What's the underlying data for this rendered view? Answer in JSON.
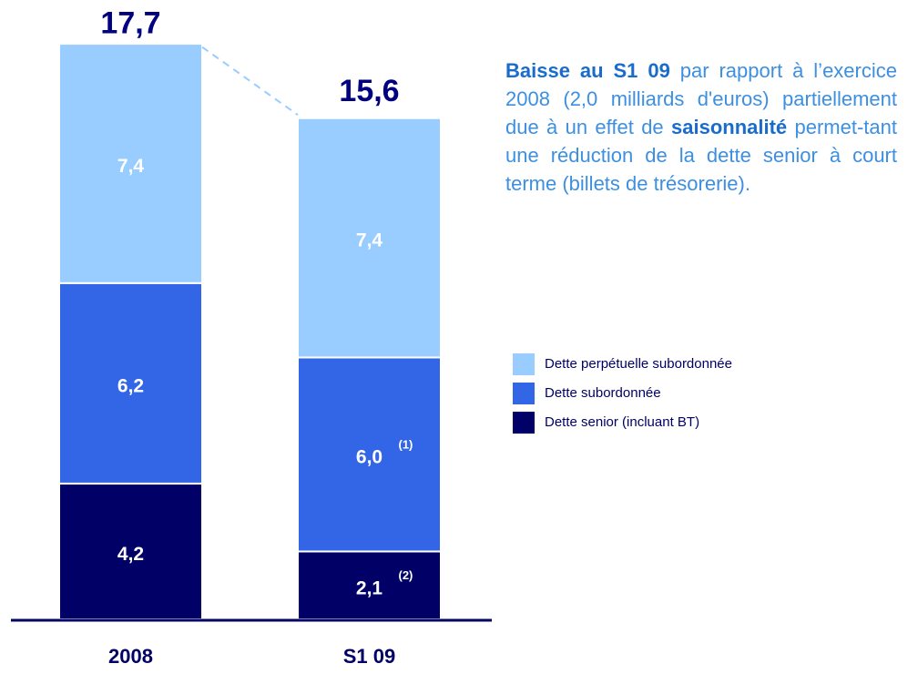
{
  "chart_data": {
    "type": "stacked_bar",
    "categories": [
      "2008",
      "S1 09"
    ],
    "series": [
      {
        "name": "Dette senior (incluant BT)",
        "color": "#000066",
        "values": [
          4.2,
          2.1
        ],
        "value_labels": [
          "4,2",
          "2,1"
        ],
        "notes": [
          null,
          "(2)"
        ]
      },
      {
        "name": "Dette subordonnée",
        "color": "#3366e6",
        "values": [
          6.2,
          6.0
        ],
        "value_labels": [
          "6,2",
          "6,0"
        ],
        "notes": [
          null,
          "(1)"
        ]
      },
      {
        "name": "Dette perpétuelle subordonnée",
        "color": "#99ccff",
        "values": [
          7.4,
          7.4
        ],
        "value_labels": [
          "7,4",
          "7,4"
        ],
        "notes": [
          null,
          null
        ]
      }
    ],
    "totals": {
      "values": [
        17.7,
        15.6
      ],
      "value_labels": [
        "17,7",
        "15,6"
      ]
    },
    "description": [
      {
        "text": "Baisse au S1 09",
        "bold": true
      },
      {
        "text": " par rapport à l’exercice 2008 (2,0 milliards d'euros) partiellement due à un effet de ",
        "bold": false
      },
      {
        "text": "saisonnalité",
        "bold": true
      },
      {
        "text": " permet-tant une réduction de la dette senior à court terme (billets de trésorerie).",
        "bold": false
      }
    ]
  }
}
